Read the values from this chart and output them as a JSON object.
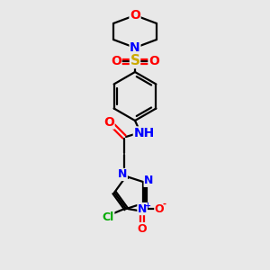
{
  "bg_color": "#e8e8e8",
  "bond_color": "#000000",
  "bond_width": 1.6,
  "atom_colors": {
    "C": "#000000",
    "N": "#0000ff",
    "O": "#ff0000",
    "S": "#ccaa00",
    "Cl": "#00aa00",
    "H": "#008080",
    "NH": "#0000ff"
  },
  "font_size": 9,
  "fig_size": [
    3.0,
    3.0
  ],
  "dpi": 100
}
